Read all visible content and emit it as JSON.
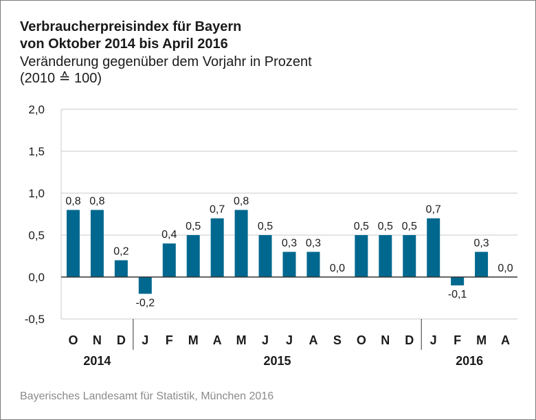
{
  "chart_data": {
    "type": "bar",
    "title_lines": [
      "Verbraucherpreisindex für Bayern",
      "von Oktober 2014 bis April 2016"
    ],
    "subtitle_lines": [
      "Veränderung gegenüber dem Vorjahr in Prozent",
      "(2010 ≙ 100)"
    ],
    "categories": [
      "O",
      "N",
      "D",
      "J",
      "F",
      "M",
      "A",
      "M",
      "J",
      "J",
      "A",
      "S",
      "O",
      "N",
      "D",
      "J",
      "F",
      "M",
      "A"
    ],
    "values": [
      0.8,
      0.8,
      0.2,
      -0.2,
      0.4,
      0.5,
      0.7,
      0.8,
      0.5,
      0.3,
      0.3,
      0.0,
      0.5,
      0.5,
      0.5,
      0.7,
      -0.1,
      0.3,
      0.0
    ],
    "value_labels": [
      "0,8",
      "0,8",
      "0,2",
      "-0,2",
      "0,4",
      "0,5",
      "0,7",
      "0,8",
      "0,5",
      "0,3",
      "0,3",
      "0,0",
      "0,5",
      "0,5",
      "0,5",
      "0,7",
      "-0,1",
      "0,3",
      "0,0"
    ],
    "years": [
      {
        "label": "2014",
        "from": 0,
        "to": 2
      },
      {
        "label": "2015",
        "from": 3,
        "to": 14
      },
      {
        "label": "2016",
        "from": 15,
        "to": 18
      }
    ],
    "ylim": [
      -0.5,
      2.0
    ],
    "yticks": [
      -0.5,
      0.0,
      0.5,
      1.0,
      1.5,
      2.0
    ],
    "ytick_labels": [
      "-0,5",
      "0,0",
      "0,5",
      "1,0",
      "1,5",
      "2,0"
    ],
    "xlabel": "",
    "ylabel": "",
    "grid": true,
    "bar_color": "#00688f",
    "grid_color": "#c8c8c8",
    "axis_color": "#333333"
  },
  "source": "Bayerisches Landesamt für Statistik, München 2016"
}
